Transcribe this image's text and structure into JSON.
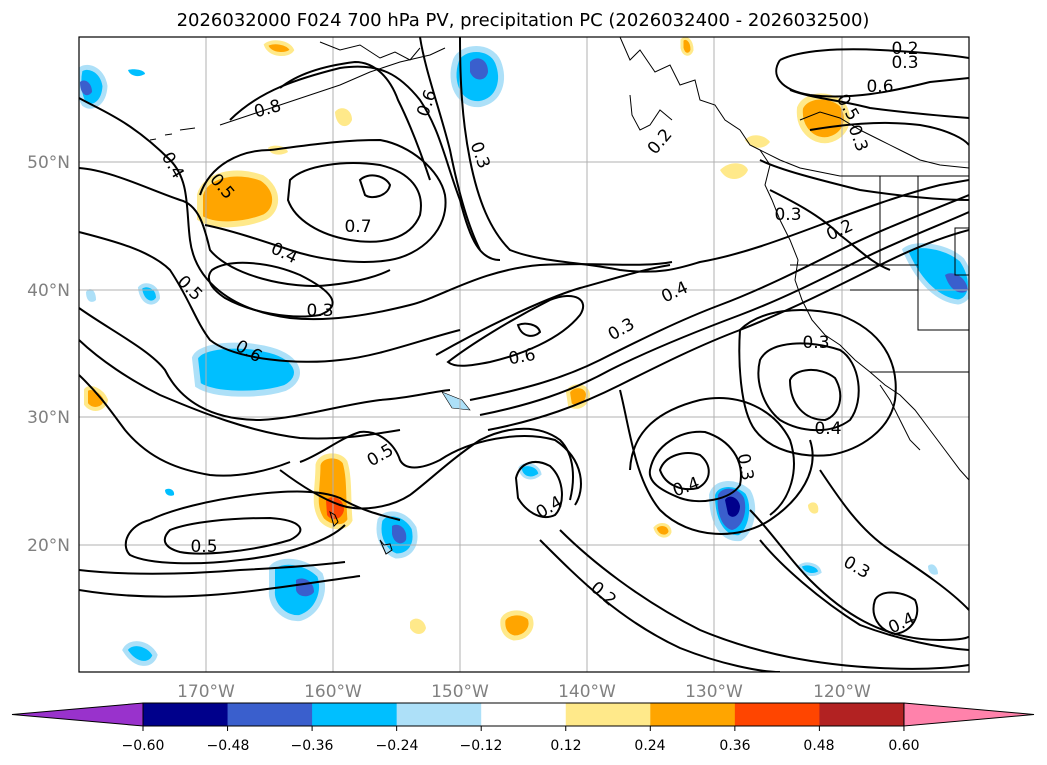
{
  "title": "2026032000 F024 700 hPa PV, precipitation PC (2026032400 - 2026032500)",
  "map": {
    "lon_ticks": [
      "170°W",
      "160°W",
      "150°W",
      "140°W",
      "130°W",
      "120°W"
    ],
    "lat_ticks": [
      "50°N",
      "40°N",
      "30°N",
      "20°N"
    ],
    "grid": true,
    "contour_labels": [
      {
        "id": "c1",
        "text": "0.2"
      },
      {
        "id": "c2",
        "text": "0.3"
      },
      {
        "id": "c3",
        "text": "0.6"
      },
      {
        "id": "c4",
        "text": "0.5"
      },
      {
        "id": "c5",
        "text": "0.3"
      },
      {
        "id": "c6",
        "text": "0.2"
      },
      {
        "id": "c7",
        "text": "0.8"
      },
      {
        "id": "c8",
        "text": "0.6"
      },
      {
        "id": "c9",
        "text": "0.3"
      },
      {
        "id": "c10",
        "text": "0.4"
      },
      {
        "id": "c11",
        "text": "0.5"
      },
      {
        "id": "c12",
        "text": "0.7"
      },
      {
        "id": "c13",
        "text": "0.4"
      },
      {
        "id": "c14",
        "text": "0.5"
      },
      {
        "id": "c15",
        "text": "0.3"
      },
      {
        "id": "c16",
        "text": "0.6"
      },
      {
        "id": "c17",
        "text": "0.6"
      },
      {
        "id": "c18",
        "text": "0.3"
      },
      {
        "id": "c19",
        "text": "0.4"
      },
      {
        "id": "c20",
        "text": "0.2"
      },
      {
        "id": "c21",
        "text": "0.3"
      },
      {
        "id": "c22",
        "text": "0.3"
      },
      {
        "id": "c23",
        "text": "0.4"
      },
      {
        "id": "c24",
        "text": "0.5"
      },
      {
        "id": "c25",
        "text": "0.4"
      },
      {
        "id": "c26",
        "text": "0.4"
      },
      {
        "id": "c27",
        "text": "0.3"
      },
      {
        "id": "c28",
        "text": "0.5"
      },
      {
        "id": "c29",
        "text": "0.2"
      },
      {
        "id": "c30",
        "text": "0.3"
      },
      {
        "id": "c31",
        "text": "0.4"
      }
    ]
  },
  "colorbar": {
    "ticks": [
      "−0.60",
      "−0.48",
      "−0.36",
      "−0.24",
      "−0.12",
      "0.12",
      "0.24",
      "0.36",
      "0.48",
      "0.60"
    ],
    "colors": [
      "#9932CC",
      "#00008B",
      "#3A5FCD",
      "#00BFFF",
      "#ADE0F8",
      "#FFFFFF",
      "#FFE98A",
      "#FFA500",
      "#FF4500",
      "#B22222",
      "#FF82AB"
    ]
  }
}
